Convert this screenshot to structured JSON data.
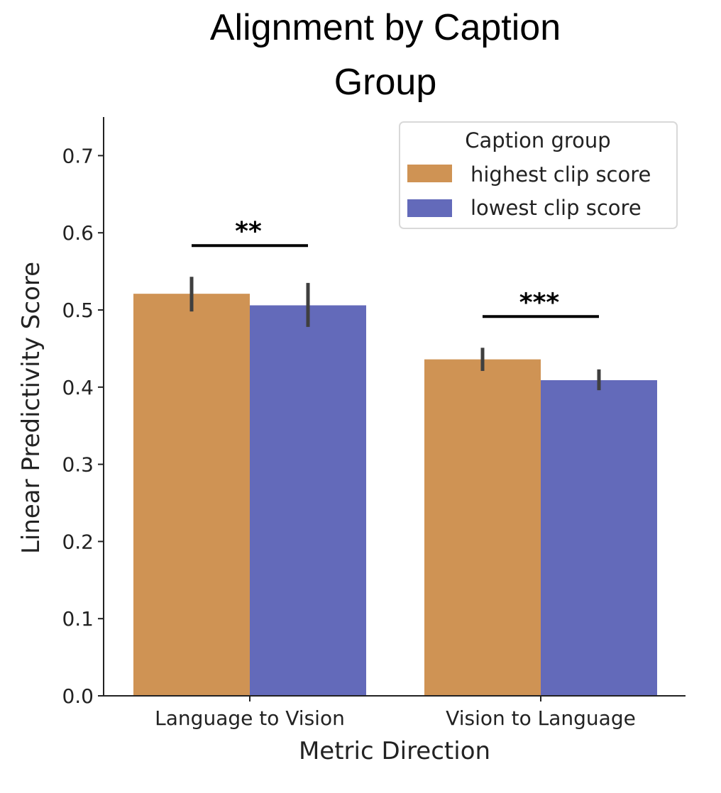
{
  "chart_data": {
    "type": "bar",
    "title": "Alignment by Caption Group",
    "title_lines": [
      "Alignment by Caption",
      "Group"
    ],
    "xlabel": "Metric Direction",
    "ylabel": "Linear Predictivity Score",
    "categories": [
      "Language to Vision",
      "Vision to Language"
    ],
    "ylim": [
      0.0,
      0.75
    ],
    "yticks": [
      "0.0",
      "0.1",
      "0.2",
      "0.3",
      "0.4",
      "0.5",
      "0.6",
      "0.7"
    ],
    "legend": {
      "title": "Caption group",
      "placement": "top-right"
    },
    "series": [
      {
        "name": "highest clip score",
        "color": "#CF9354",
        "values": [
          0.521,
          0.436
        ],
        "err_low": [
          0.498,
          0.421
        ],
        "err_high": [
          0.543,
          0.451
        ]
      },
      {
        "name": "lowest clip score",
        "color": "#636ABA",
        "values": [
          0.506,
          0.409
        ],
        "err_low": [
          0.478,
          0.396
        ],
        "err_high": [
          0.535,
          0.423
        ]
      }
    ],
    "annotations": [
      {
        "text": "**",
        "category": 0
      },
      {
        "text": "***",
        "category": 1
      }
    ],
    "grid": false
  }
}
